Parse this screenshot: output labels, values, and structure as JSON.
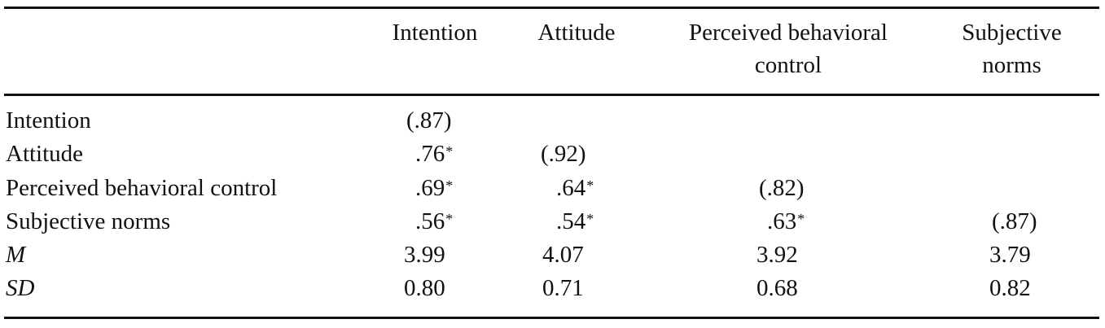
{
  "table": {
    "columns": [
      {
        "line1": "Intention",
        "line2": ""
      },
      {
        "line1": "Attitude",
        "line2": ""
      },
      {
        "line1": "Perceived behavioral",
        "line2": "control"
      },
      {
        "line1": "Subjective",
        "line2": "norms"
      }
    ],
    "rows": [
      {
        "label": "Intention",
        "cells": [
          {
            "value": "(.87)",
            "sig": ""
          },
          {
            "value": "",
            "sig": ""
          },
          {
            "value": "",
            "sig": ""
          },
          {
            "value": "",
            "sig": ""
          }
        ]
      },
      {
        "label": "Attitude",
        "cells": [
          {
            "value": ".76",
            "sig": "*"
          },
          {
            "value": "(.92)",
            "sig": ""
          },
          {
            "value": "",
            "sig": ""
          },
          {
            "value": "",
            "sig": ""
          }
        ]
      },
      {
        "label": "Perceived behavioral control",
        "cells": [
          {
            "value": ".69",
            "sig": "*"
          },
          {
            "value": ".64",
            "sig": "*"
          },
          {
            "value": "(.82)",
            "sig": ""
          },
          {
            "value": "",
            "sig": ""
          }
        ]
      },
      {
        "label": "Subjective norms",
        "cells": [
          {
            "value": ".56",
            "sig": "*"
          },
          {
            "value": ".54",
            "sig": "*"
          },
          {
            "value": ".63",
            "sig": "*"
          },
          {
            "value": "(.87)",
            "sig": ""
          }
        ]
      },
      {
        "label": "M",
        "cells": [
          {
            "value": "3.99",
            "sig": ""
          },
          {
            "value": "4.07",
            "sig": ""
          },
          {
            "value": "3.92",
            "sig": ""
          },
          {
            "value": "3.79",
            "sig": ""
          }
        ]
      },
      {
        "label": "SD",
        "cells": [
          {
            "value": "0.80",
            "sig": ""
          },
          {
            "value": "0.71",
            "sig": ""
          },
          {
            "value": "0.68",
            "sig": ""
          },
          {
            "value": "0.82",
            "sig": ""
          }
        ]
      }
    ]
  }
}
